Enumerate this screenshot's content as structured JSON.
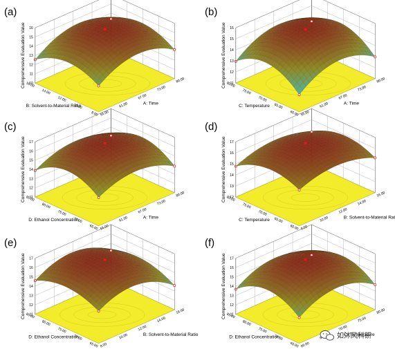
{
  "colors": {
    "floor": "#f2ec2a",
    "floor_edge": "#b9b21a",
    "surface_low": "#34c6d6",
    "surface_mid": "#8f8a2a",
    "surface_high": "#8a1a14",
    "mesh": "#1a1a1a",
    "box": "#555555",
    "point": "#e11b1b"
  },
  "watermark": {
    "text": "如沐风科研",
    "icon": "wechat-icon"
  },
  "chart_data": [
    {
      "panel": "(a)",
      "type": "surface3d",
      "zlabel": "Comprehensive Evaluation Value",
      "zticks": [
        "10",
        "11",
        "12",
        "13",
        "14",
        "15",
        "16"
      ],
      "xlabel": "A: Time",
      "xticks": [
        "55.00",
        "61.00",
        "67.00",
        "73.00",
        "80.00"
      ],
      "ylabel": "B: Solvent-to-Material Ratio",
      "yticks": [
        "8.00",
        "10.00",
        "12.00",
        "14.00",
        "16.00"
      ]
    },
    {
      "panel": "(b)",
      "type": "surface3d",
      "zlabel": "Comprehensive Evaluation Value",
      "zticks": [
        "11",
        "12",
        "13",
        "14",
        "15",
        "16"
      ],
      "xlabel": "A: Time",
      "xticks": [
        "55.00",
        "61.00",
        "67.00",
        "73.00",
        "80.00"
      ],
      "ylabel": "C: Temperature",
      "yticks": [
        "60.00",
        "65.00",
        "70.00",
        "75.00",
        "80.00"
      ]
    },
    {
      "panel": "(c)",
      "type": "surface3d",
      "zlabel": "Comprehensive Evaluation Value",
      "zticks": [
        "11",
        "12",
        "13",
        "14",
        "15",
        "16",
        "17"
      ],
      "xlabel": "A: Time",
      "xticks": [
        "55.00",
        "61.00",
        "67.00",
        "73.00",
        "80.00"
      ],
      "ylabel": "D: Ethanol Concentration",
      "yticks": [
        "65.00",
        "70.00",
        "75.00",
        "80.00",
        "85.00"
      ]
    },
    {
      "panel": "(d)",
      "type": "surface3d",
      "zlabel": "Comprehensive Evaluation Value",
      "zticks": [
        "12",
        "13",
        "14",
        "15",
        "16",
        "17"
      ],
      "xlabel": "B: Solvent-to-Material Ratio",
      "xticks": [
        "8.00",
        "10.00",
        "12.00",
        "14.00",
        "16.00"
      ],
      "ylabel": "C: Temperature",
      "yticks": [
        "60.00",
        "65.00",
        "70.00",
        "75.00",
        "80.00"
      ]
    },
    {
      "panel": "(e)",
      "type": "surface3d",
      "zlabel": "Comprehensive Evaluation Value",
      "zticks": [
        "11",
        "12",
        "13",
        "14",
        "15",
        "16",
        "17"
      ],
      "xlabel": "B: Solvent-to-Material Ratio",
      "xticks": [
        "8.00",
        "10.00",
        "12.00",
        "14.00",
        "16.00"
      ],
      "ylabel": "D: Ethanol Concentration",
      "yticks": [
        "65.00",
        "70.00",
        "75.00",
        "80.00",
        "85.00"
      ]
    },
    {
      "panel": "(f)",
      "type": "surface3d",
      "zlabel": "Comprehensive Evaluation Value",
      "zticks": [
        "11",
        "12",
        "13",
        "14",
        "15",
        "16",
        "17"
      ],
      "xlabel": "C: Temperature",
      "xticks": [
        "60.00",
        "65.00",
        "70.00",
        "75.00",
        "80.00"
      ],
      "ylabel": "D: Ethanol Concentration",
      "yticks": [
        "65.00",
        "70.00",
        "75.00",
        "80.00",
        "85.00"
      ]
    }
  ]
}
